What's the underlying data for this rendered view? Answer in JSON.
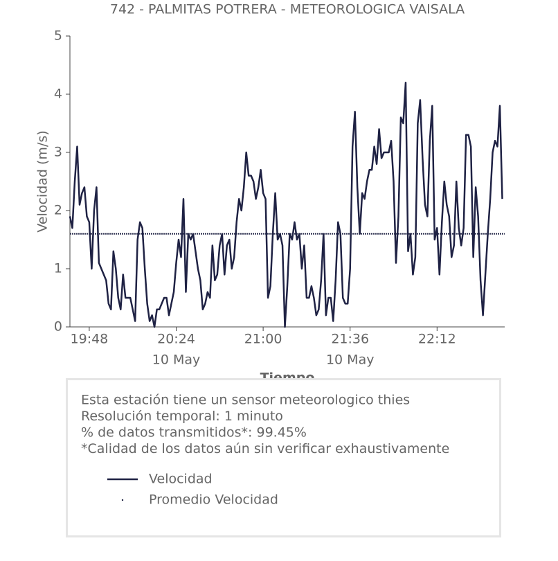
{
  "chart_data": {
    "type": "line",
    "title": "742 - PALMITAS POTRERA - METEOROLOGICA VAISALA",
    "x_label": "Tiempo",
    "y_label": "Velocidad (m/s)",
    "x": [
      "19:40",
      "19:41",
      "19:42",
      "19:43",
      "19:44",
      "19:45",
      "19:46",
      "19:47",
      "19:48",
      "19:49",
      "19:50",
      "19:51",
      "19:52",
      "19:53",
      "19:54",
      "19:55",
      "19:56",
      "19:57",
      "19:58",
      "19:59",
      "20:00",
      "20:01",
      "20:02",
      "20:03",
      "20:04",
      "20:05",
      "20:06",
      "20:07",
      "20:08",
      "20:09",
      "20:10",
      "20:11",
      "20:12",
      "20:13",
      "20:14",
      "20:15",
      "20:16",
      "20:17",
      "20:18",
      "20:19",
      "20:20",
      "20:21",
      "20:22",
      "20:23",
      "20:24",
      "20:25",
      "20:26",
      "20:27",
      "20:28",
      "20:29",
      "20:30",
      "20:31",
      "20:32",
      "20:33",
      "20:34",
      "20:35",
      "20:36",
      "20:37",
      "20:38",
      "20:39",
      "20:40",
      "20:41",
      "20:42",
      "20:43",
      "20:44",
      "20:45",
      "20:46",
      "20:47",
      "20:48",
      "20:49",
      "20:50",
      "20:51",
      "20:52",
      "20:53",
      "20:54",
      "20:55",
      "20:56",
      "20:57",
      "20:58",
      "20:59",
      "21:00",
      "21:01",
      "21:02",
      "21:03",
      "21:04",
      "21:05",
      "21:06",
      "21:07",
      "21:08",
      "21:09",
      "21:10",
      "21:11",
      "21:12",
      "21:13",
      "21:14",
      "21:15",
      "21:16",
      "21:17",
      "21:18",
      "21:19",
      "21:20",
      "21:21",
      "21:22",
      "21:23",
      "21:24",
      "21:25",
      "21:26",
      "21:27",
      "21:28",
      "21:29",
      "21:30",
      "21:31",
      "21:32",
      "21:33",
      "21:34",
      "21:35",
      "21:36",
      "21:37",
      "21:38",
      "21:39",
      "21:40",
      "21:41",
      "21:42",
      "21:43",
      "21:44",
      "21:45",
      "21:46",
      "21:47",
      "21:48",
      "21:49",
      "21:50",
      "21:51",
      "21:52",
      "21:53",
      "21:54",
      "21:55",
      "21:56",
      "21:57",
      "21:58",
      "21:59",
      "22:00",
      "22:01",
      "22:02",
      "22:03",
      "22:04",
      "22:05",
      "22:06",
      "22:07",
      "22:08",
      "22:09",
      "22:10",
      "22:11",
      "22:12",
      "22:13",
      "22:14",
      "22:15",
      "22:16",
      "22:17",
      "22:18",
      "22:19",
      "22:20",
      "22:21",
      "22:22",
      "22:23",
      "22:24",
      "22:25",
      "22:26",
      "22:27",
      "22:28",
      "22:29",
      "22:30",
      "22:31",
      "22:32",
      "22:33",
      "22:34",
      "22:35",
      "22:36",
      "22:37",
      "22:38",
      "22:39"
    ],
    "series": [
      {
        "name": "Velocidad",
        "color": "#1f2244",
        "values": [
          1.9,
          1.7,
          2.5,
          3.1,
          2.1,
          2.3,
          2.4,
          1.9,
          1.8,
          1.0,
          2.0,
          2.4,
          1.1,
          1.0,
          0.9,
          0.8,
          0.4,
          0.3,
          1.3,
          1.0,
          0.5,
          0.3,
          0.9,
          0.5,
          0.5,
          0.5,
          0.3,
          0.1,
          1.5,
          1.8,
          1.7,
          1.0,
          0.4,
          0.1,
          0.2,
          0.0,
          0.3,
          0.3,
          0.4,
          0.5,
          0.5,
          0.2,
          0.4,
          0.6,
          1.1,
          1.5,
          1.2,
          2.2,
          0.6,
          1.6,
          1.5,
          1.6,
          1.3,
          1.0,
          0.8,
          0.3,
          0.4,
          0.6,
          0.5,
          1.4,
          0.8,
          0.9,
          1.4,
          1.6,
          0.9,
          1.4,
          1.5,
          1.0,
          1.2,
          1.8,
          2.2,
          2.0,
          2.4,
          3.0,
          2.6,
          2.6,
          2.5,
          2.2,
          2.4,
          2.7,
          2.3,
          2.2,
          0.5,
          0.7,
          1.6,
          2.3,
          1.5,
          1.6,
          1.4,
          0.0,
          0.7,
          1.6,
          1.5,
          1.8,
          1.5,
          1.6,
          1.0,
          1.4,
          0.5,
          0.5,
          0.7,
          0.5,
          0.2,
          0.3,
          0.8,
          1.6,
          0.2,
          0.5,
          0.5,
          0.1,
          0.8,
          1.8,
          1.6,
          0.5,
          0.4,
          0.4,
          1.0,
          3.1,
          3.7,
          2.4,
          1.6,
          2.3,
          2.2,
          2.5,
          2.7,
          2.7,
          3.1,
          2.8,
          3.4,
          2.9,
          3.0,
          3.0,
          3.0,
          3.2,
          2.5,
          1.1,
          1.9,
          3.6,
          3.5,
          4.2,
          1.3,
          1.6,
          0.9,
          1.2,
          3.5,
          3.9,
          2.9,
          2.1,
          1.9,
          3.2,
          3.8,
          1.5,
          1.7,
          0.9,
          1.8,
          2.5,
          2.1,
          1.9,
          1.2,
          1.4,
          2.5,
          1.7,
          1.4,
          1.7,
          3.3,
          3.3,
          3.1,
          1.2,
          2.4,
          1.9,
          0.8,
          0.2,
          0.9,
          1.6,
          2.2,
          3.0,
          3.2,
          3.1,
          3.8,
          2.2
        ]
      },
      {
        "name": "Promedio Velocidad",
        "color": "#1f2244",
        "style": "dotted",
        "value": 1.6
      }
    ],
    "xlim": [
      "19:40",
      "22:40"
    ],
    "xticks": [
      "19:48",
      {
        "value": "20:24",
        "label": "20:24",
        "date": "10 May"
      },
      "21:00",
      {
        "value": "21:36",
        "label": "21:36",
        "date": "10 May"
      },
      "22:12"
    ],
    "ylim": [
      0,
      5
    ],
    "yticks": [
      0,
      1,
      2,
      3,
      4,
      5
    ],
    "grid": false,
    "notes": [
      "Esta estación tiene un sensor meteorologico thies",
      "Resolución temporal: 1 minuto",
      "% de datos transmitidos*: 99.45%",
      "*Calidad de los datos aún sin verificar exhaustivamente"
    ]
  }
}
